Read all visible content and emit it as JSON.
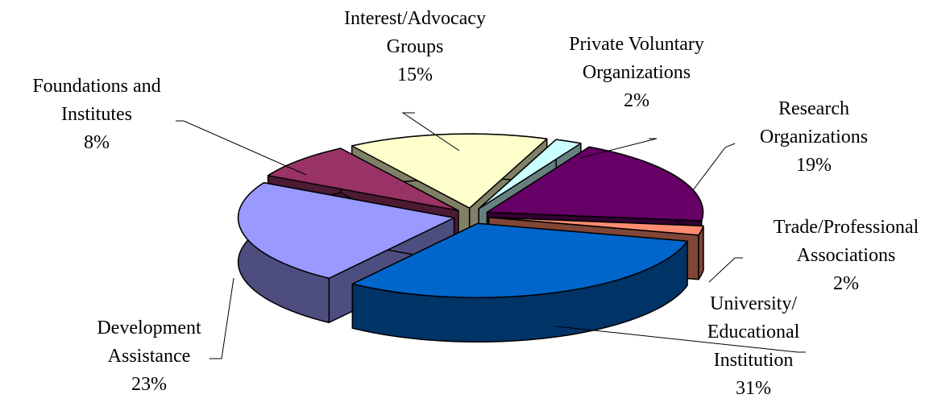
{
  "chart_data": {
    "type": "pie3d",
    "categories": [
      "Interest/Advocacy Groups",
      "Private Voluntary Organizations",
      "Research Organizations",
      "Trade/Professional Associations",
      "University/ Educational Institution",
      "Development Assistance",
      "Foundations and Institutes"
    ],
    "values": [
      15,
      2,
      19,
      2,
      31,
      23,
      8
    ],
    "value_labels": [
      "15%",
      "2%",
      "19%",
      "2%",
      "31%",
      "23%",
      "8%"
    ],
    "colors": [
      "#ffffcc",
      "#ccffff",
      "#660066",
      "#ff8c70",
      "#0066cc",
      "#9999ff",
      "#993366"
    ]
  }
}
